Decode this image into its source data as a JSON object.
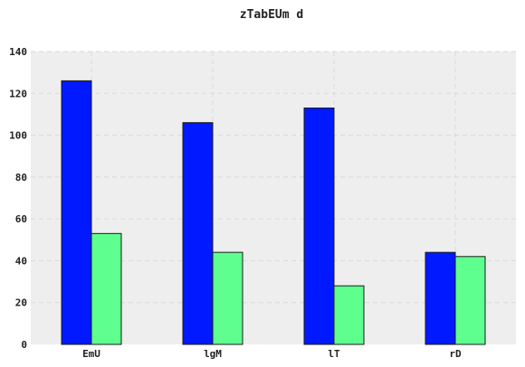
{
  "chart_data": {
    "type": "bar",
    "title": "zTabEUm d",
    "xlabel": "",
    "ylabel": "",
    "categories": [
      "EmU",
      "lgM",
      "lT",
      "rD"
    ],
    "series": [
      {
        "values": [
          126,
          106,
          113,
          44
        ],
        "color": "#0019ff"
      },
      {
        "values": [
          53,
          44,
          28,
          42
        ],
        "color": "#5eff8f"
      }
    ],
    "ylim": [
      0,
      140
    ],
    "yticks": [
      0,
      20,
      40,
      60,
      80,
      100,
      120,
      140
    ],
    "grid": true,
    "plot_background": "#eeeeee"
  }
}
